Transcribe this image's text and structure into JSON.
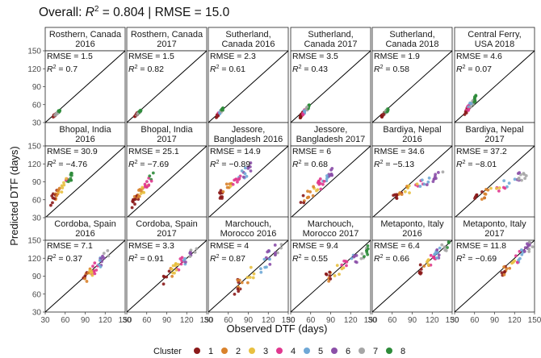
{
  "chart_data": {
    "type": "scatter",
    "title": "Overall: R² = 0.804 | RMSE = 15.0",
    "title_parts": {
      "prefix": "Overall: ",
      "r": "R",
      "sup": "2",
      "suffix": " = 0.804 | RMSE = 15.0"
    },
    "xlabel": "Observed DTF (days)",
    "ylabel": "Predicted DTF (days)",
    "xlim": [
      30,
      150
    ],
    "ylim": [
      30,
      150
    ],
    "ticks": [
      30,
      60,
      90,
      120,
      150
    ],
    "x_tick_labels": [
      "30",
      "60",
      "90",
      "120",
      "150"
    ],
    "y_tick_labels": [
      "30",
      "60",
      "90",
      "120",
      "150"
    ],
    "reference_line": "1:1",
    "legend": {
      "title": "Cluster",
      "position": "bottom",
      "entries": [
        {
          "label": "1",
          "color": "#8B1A1A"
        },
        {
          "label": "2",
          "color": "#D9822B"
        },
        {
          "label": "3",
          "color": "#E8C040"
        },
        {
          "label": "4",
          "color": "#E0388F"
        },
        {
          "label": "5",
          "color": "#6FA8D6"
        },
        {
          "label": "6",
          "color": "#8B4FA8"
        },
        {
          "label": "7",
          "color": "#A6A6A6"
        },
        {
          "label": "8",
          "color": "#2E8B3A"
        }
      ]
    },
    "panels": [
      {
        "site": "Rosthern, Canada",
        "year": "2016",
        "rmse": "RMSE = 1.5",
        "r2": " = 0.7",
        "cx": [
          42,
          52
        ],
        "cy": [
          40,
          50
        ],
        "clusters": [
          1,
          7,
          8
        ]
      },
      {
        "site": "Rosthern, Canada",
        "year": "2017",
        "rmse": "RMSE = 1.5",
        "r2": " = 0.82",
        "cx": [
          42,
          52
        ],
        "cy": [
          41,
          51
        ],
        "clusters": [
          1,
          7,
          8
        ]
      },
      {
        "site": "Sutherland,",
        "year": "Canada 2016",
        "rmse": "RMSE = 2.3",
        "r2": " = 0.61",
        "cx": [
          42,
          52
        ],
        "cy": [
          40,
          53
        ],
        "clusters": [
          1,
          4,
          5,
          7,
          8
        ]
      },
      {
        "site": "Sutherland,",
        "year": "Canada 2017",
        "rmse": "RMSE = 3.5",
        "r2": " = 0.43",
        "cx": [
          44,
          58
        ],
        "cy": [
          40,
          58
        ],
        "clusters": [
          1,
          4,
          5,
          7,
          8
        ]
      },
      {
        "site": "Sutherland,",
        "year": "Canada 2018",
        "rmse": "RMSE = 1.9",
        "r2": " = 0.58",
        "cx": [
          44,
          54
        ],
        "cy": [
          40,
          52
        ],
        "clusters": [
          1,
          7,
          8
        ]
      },
      {
        "site": "Central Ferry,",
        "year": "USA 2018",
        "rmse": "RMSE = 4.6",
        "r2": " = 0.07",
        "cx": [
          45,
          62
        ],
        "cy": [
          45,
          72
        ],
        "clusters": [
          1,
          4,
          5,
          7,
          8
        ]
      },
      {
        "site": "Bhopal, India",
        "year": "2016",
        "rmse": "RMSE = 30.9",
        "r2": " = −4.76",
        "cx": [
          38,
          72
        ],
        "cy": [
          58,
          103
        ],
        "clusters": [
          1,
          2,
          3,
          4,
          8
        ]
      },
      {
        "site": "Bhopal, India",
        "year": "2017",
        "rmse": "RMSE = 25.1",
        "r2": " = −7.69",
        "cx": [
          38,
          72
        ],
        "cy": [
          55,
          103
        ],
        "clusters": [
          1,
          2,
          3,
          4,
          8
        ]
      },
      {
        "site": "Jessore,",
        "year": "Bangladesh 2016",
        "rmse": "RMSE = 14.9",
        "r2": " = −0.89",
        "cx": [
          45,
          95
        ],
        "cy": [
          65,
          115
        ],
        "clusters": [
          1,
          2,
          3,
          4,
          5,
          6
        ]
      },
      {
        "site": "Jessore,",
        "year": "Bangladesh 2017",
        "rmse": "RMSE = 6",
        "r2": " = 0.68",
        "cx": [
          45,
          95
        ],
        "cy": [
          55,
          108
        ],
        "clusters": [
          1,
          2,
          3,
          4,
          5,
          6
        ]
      },
      {
        "site": "Bardiya, Nepal",
        "year": "2016",
        "rmse": "RMSE = 34.6",
        "r2": " = −5.13",
        "cx": [
          60,
          140
        ],
        "cy": [
          65,
          105
        ],
        "clusters": [
          1,
          2,
          3,
          4,
          5,
          6,
          7
        ]
      },
      {
        "site": "Bardiya, Nepal",
        "year": "2017",
        "rmse": "RMSE = 37.2",
        "r2": " = −8.01",
        "cx": [
          60,
          140
        ],
        "cy": [
          62,
          105
        ],
        "clusters": [
          1,
          2,
          3,
          4,
          5,
          6,
          7
        ]
      },
      {
        "site": "Cordoba, Spain",
        "year": "2016",
        "rmse": "RMSE = 7.1",
        "r2": " = 0.37",
        "cx": [
          85,
          125
        ],
        "cy": [
          78,
          130
        ],
        "clusters": [
          1,
          2,
          3,
          4,
          5,
          6,
          7
        ]
      },
      {
        "site": "Cordoba, Spain",
        "year": "2017",
        "rmse": "RMSE = 3.3",
        "r2": " = 0.91",
        "cx": [
          85,
          135
        ],
        "cy": [
          85,
          135
        ],
        "clusters": [
          1,
          2,
          3,
          4,
          5,
          6,
          7
        ]
      },
      {
        "site": "Marchouch,",
        "year": "Morocco 2016",
        "rmse": "RMSE = 4",
        "r2": " = 0.87",
        "cx": [
          65,
          140
        ],
        "cy": [
          65,
          140
        ],
        "clusters": [
          1,
          2,
          3,
          4,
          5,
          6,
          7
        ]
      },
      {
        "site": "Marchouch,",
        "year": "Morocco 2017",
        "rmse": "RMSE = 9.4",
        "r2": " = 0.55",
        "cx": [
          80,
          148
        ],
        "cy": [
          85,
          135
        ],
        "clusters": [
          1,
          2,
          3,
          4,
          5,
          6,
          7,
          8
        ]
      },
      {
        "site": "Metaponto, Italy",
        "year": "2016",
        "rmse": "RMSE = 6.4",
        "r2": " = 0.66",
        "cx": [
          100,
          148
        ],
        "cy": [
          98,
          148
        ],
        "clusters": [
          1,
          2,
          3,
          4,
          5,
          6,
          7,
          8
        ]
      },
      {
        "site": "Metaponto, Italy",
        "year": "2017",
        "rmse": "RMSE = 11.8",
        "r2": " = −0.69",
        "cx": [
          100,
          148
        ],
        "cy": [
          95,
          145
        ],
        "clusters": [
          1,
          2,
          3,
          4,
          5,
          6,
          7
        ]
      }
    ]
  }
}
